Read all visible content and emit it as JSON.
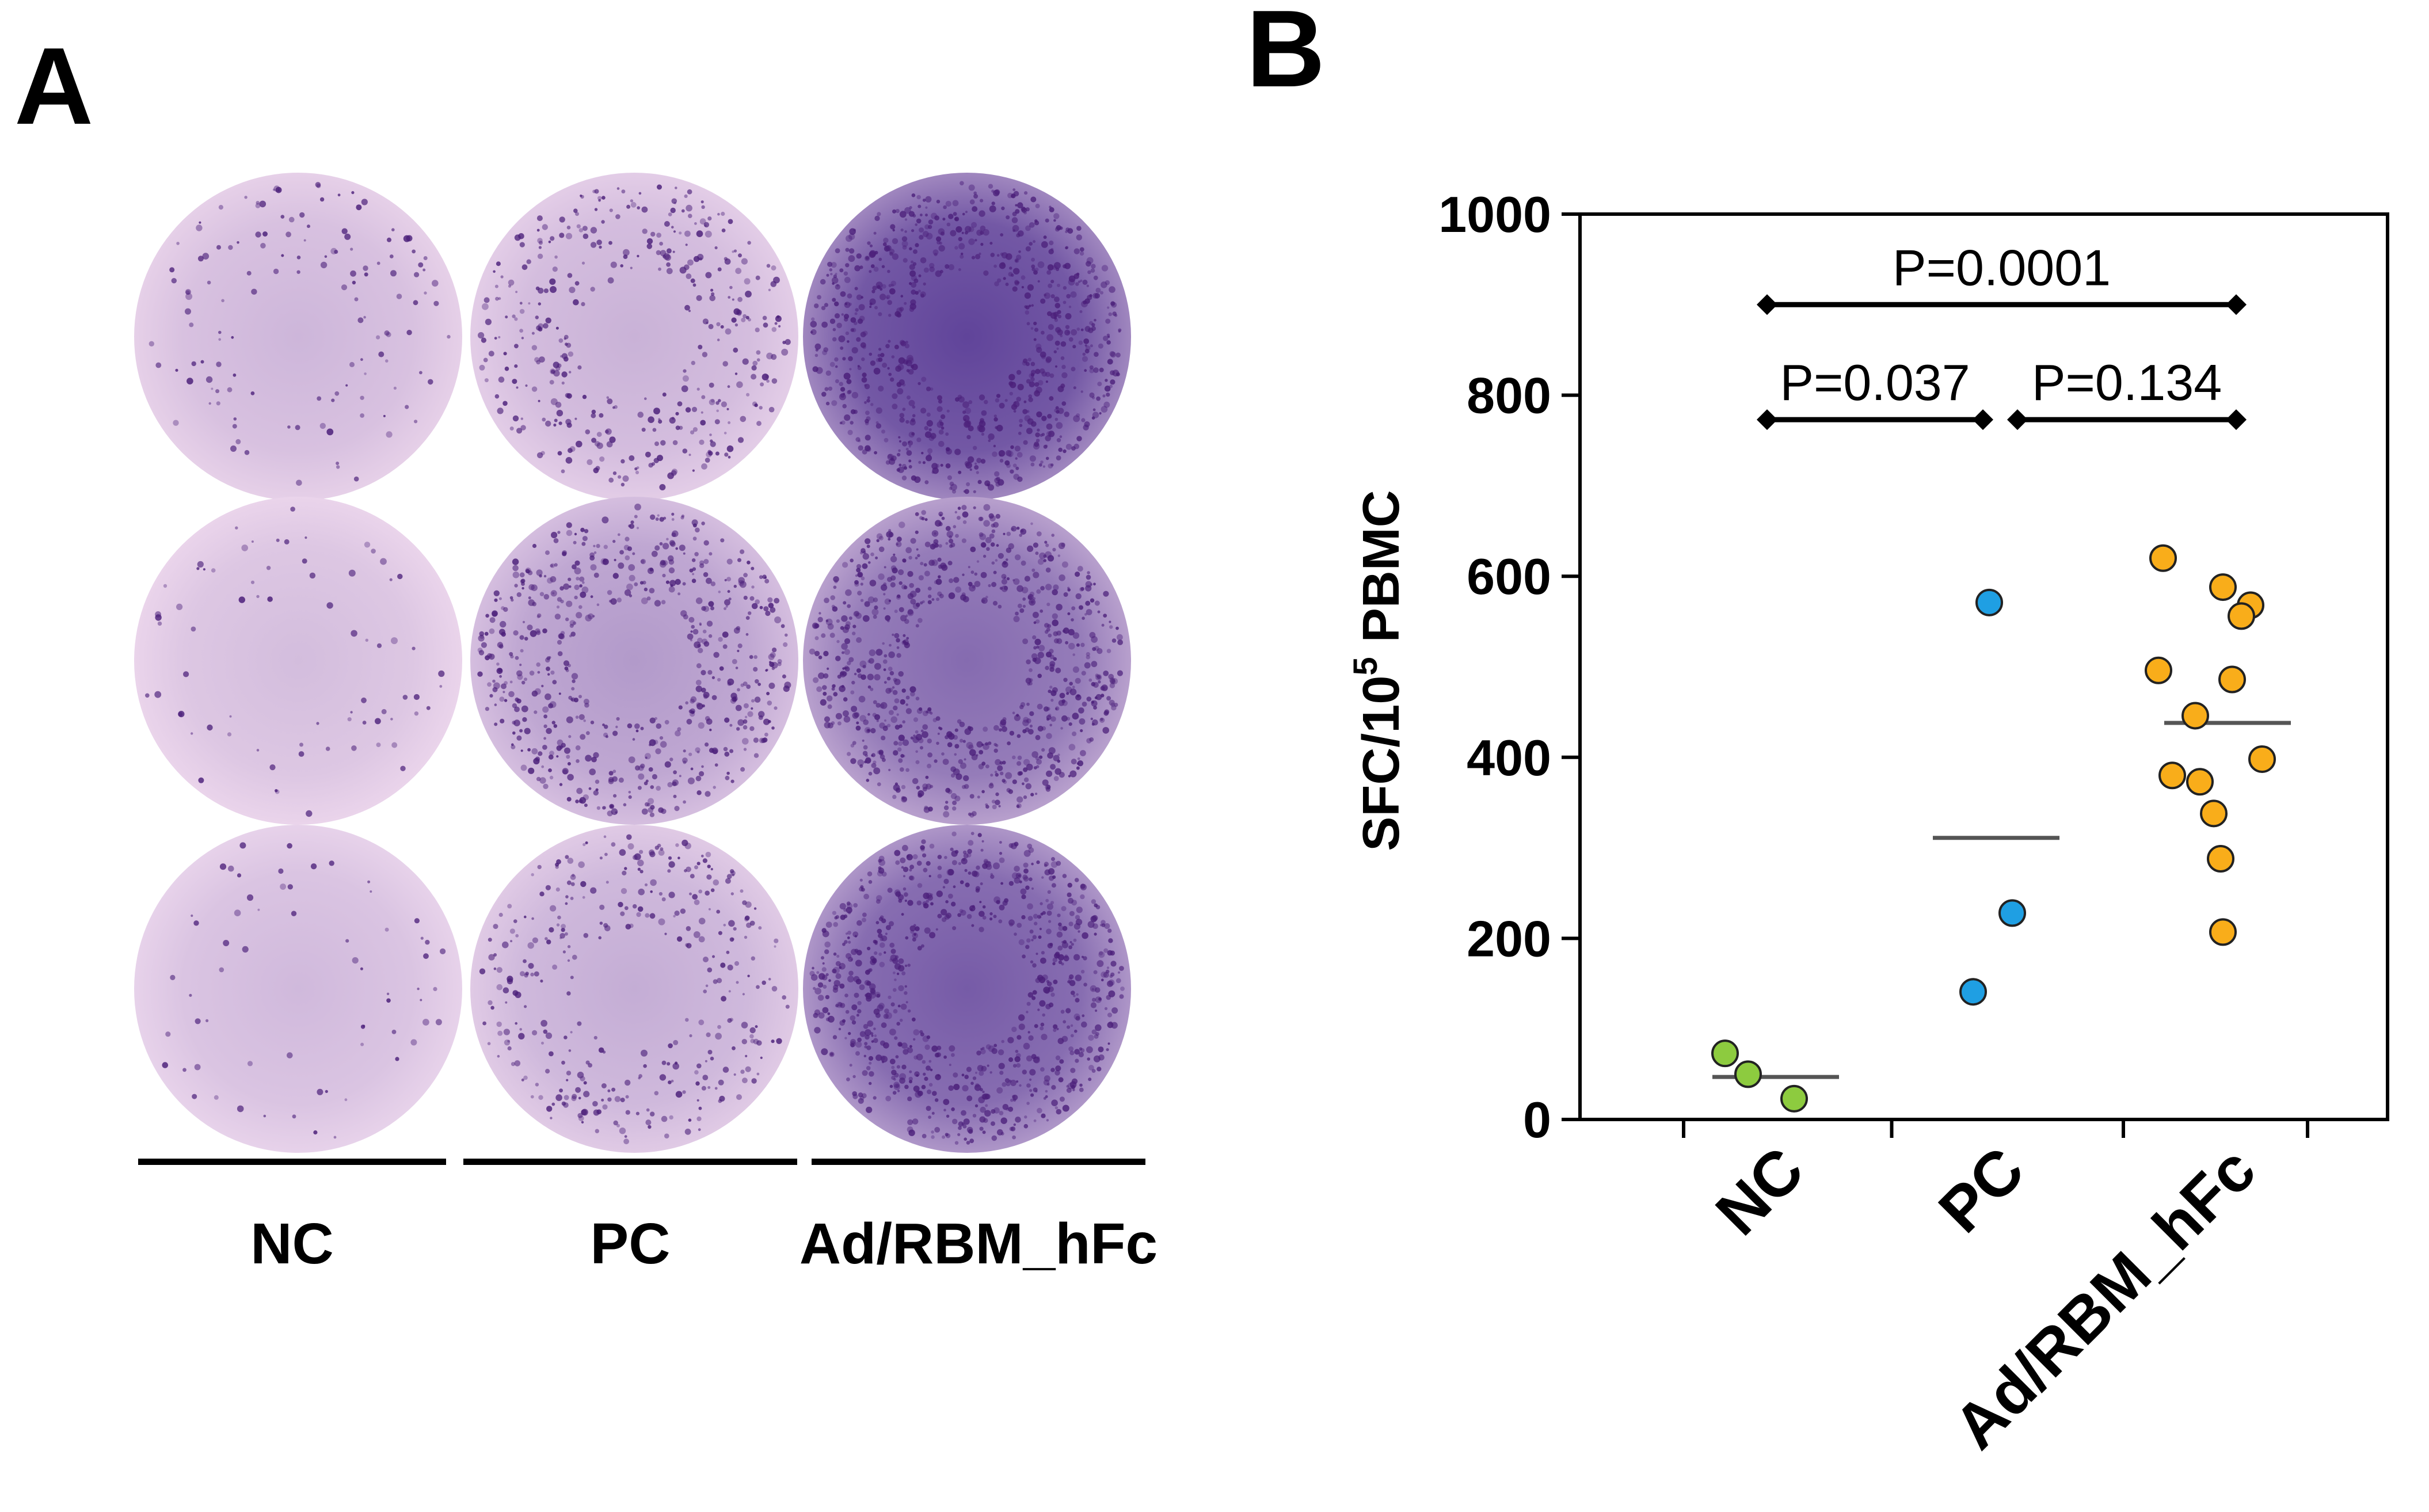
{
  "panel_a": {
    "letter": "A",
    "columns": [
      {
        "label": "NC",
        "wells": [
          {
            "density": 0.12,
            "spots": 0.15
          },
          {
            "density": 0.08,
            "spots": 0.08
          },
          {
            "density": 0.1,
            "spots": 0.07
          }
        ]
      },
      {
        "label": "PC",
        "wells": [
          {
            "density": 0.15,
            "spots": 0.45
          },
          {
            "density": 0.3,
            "spots": 0.7
          },
          {
            "density": 0.18,
            "spots": 0.4
          }
        ]
      },
      {
        "label": "Ad/RBM_hFc",
        "wells": [
          {
            "density": 0.85,
            "spots": 0.95
          },
          {
            "density": 0.6,
            "spots": 0.95
          },
          {
            "density": 0.7,
            "spots": 0.95
          }
        ]
      }
    ],
    "colors": {
      "well_light": "#f1dcef",
      "well_dark": "#5b3f97",
      "spot": "#4b1f7a"
    }
  },
  "panel_b": {
    "letter": "B",
    "chart_data": {
      "type": "scatter",
      "title": "",
      "ylabel_main": "SFC/10",
      "ylabel_sup": "5",
      "ylabel_tail": " PBMC",
      "ylim": [
        0,
        1000
      ],
      "yticks": [
        0,
        200,
        400,
        600,
        800,
        1000
      ],
      "tick_labels": [
        "0",
        "200",
        "400",
        "600",
        "800",
        "1000"
      ],
      "categories": [
        "NC",
        "PC",
        "Ad/RBM_hFc"
      ],
      "series": [
        {
          "category": "NC",
          "color": "#8dcb3f",
          "mean": 47,
          "points": [
            {
              "dx": -0.22,
              "y": 73
            },
            {
              "dx": -0.12,
              "y": 50
            },
            {
              "dx": 0.08,
              "y": 23
            }
          ]
        },
        {
          "category": "PC",
          "color": "#1f9fe3",
          "mean": 311,
          "points": [
            {
              "dx": -0.1,
              "y": 141
            },
            {
              "dx": 0.07,
              "y": 228
            },
            {
              "dx": -0.03,
              "y": 571
            }
          ]
        },
        {
          "category": "Ad/RBM_hFc",
          "color": "#f9ad1a",
          "mean": 438,
          "points": [
            {
              "dx": -0.28,
              "y": 620
            },
            {
              "dx": -0.02,
              "y": 588
            },
            {
              "dx": 0.1,
              "y": 568
            },
            {
              "dx": 0.06,
              "y": 556
            },
            {
              "dx": -0.3,
              "y": 496
            },
            {
              "dx": 0.02,
              "y": 486
            },
            {
              "dx": -0.14,
              "y": 446
            },
            {
              "dx": 0.15,
              "y": 398
            },
            {
              "dx": -0.24,
              "y": 380
            },
            {
              "dx": -0.12,
              "y": 373
            },
            {
              "dx": -0.06,
              "y": 338
            },
            {
              "dx": -0.03,
              "y": 288
            },
            {
              "dx": -0.02,
              "y": 207
            }
          ]
        }
      ],
      "comparisons": [
        {
          "from": 0,
          "to": 2,
          "y": 900,
          "label": "P=0.0001"
        },
        {
          "from": 0,
          "to": 1,
          "y": 773,
          "label": "P=0.037"
        },
        {
          "from": 1,
          "to": 2,
          "y": 773,
          "label": "P=0.134"
        }
      ]
    }
  }
}
